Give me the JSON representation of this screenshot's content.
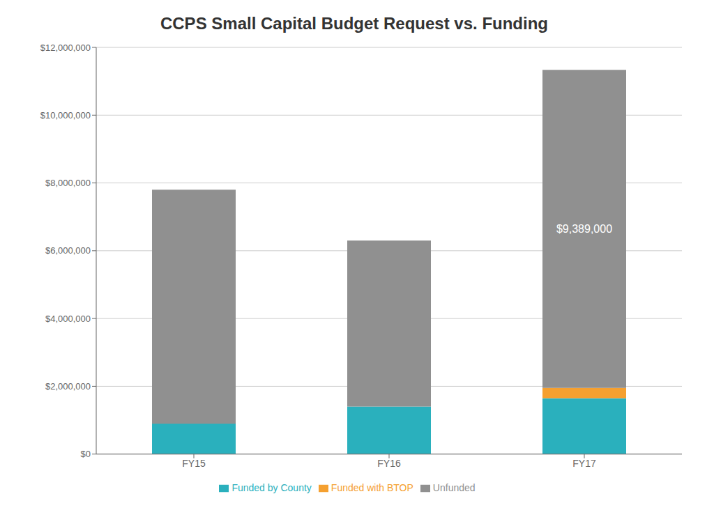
{
  "chart_data": {
    "type": "bar",
    "stacked": true,
    "title": "CCPS Small Capital Budget Request vs. Funding",
    "categories": [
      "FY15",
      "FY16",
      "FY17"
    ],
    "series": [
      {
        "name": "Funded by County",
        "color": "#2ab0bd",
        "values": [
          900000,
          1400000,
          1650000
        ]
      },
      {
        "name": "Funded with BTOP",
        "color": "#f5a030",
        "values": [
          0,
          0,
          300000
        ]
      },
      {
        "name": "Unfunded",
        "color": "#909090",
        "values": [
          6900000,
          4900000,
          9389000
        ]
      }
    ],
    "annotations": [
      {
        "text": "$9,389,000",
        "category": "FY17",
        "series": "Unfunded"
      }
    ],
    "ylim": [
      0,
      12000000
    ],
    "yticks": [
      {
        "value": 0,
        "label": "$0"
      },
      {
        "value": 2000000,
        "label": "$2,000,000"
      },
      {
        "value": 4000000,
        "label": "$4,000,000"
      },
      {
        "value": 6000000,
        "label": "$6,000,000"
      },
      {
        "value": 8000000,
        "label": "$8,000,000"
      },
      {
        "value": 10000000,
        "label": "$10,000,000"
      },
      {
        "value": 12000000,
        "label": "$12,000,000"
      }
    ],
    "grid": true,
    "legend": "bottom"
  }
}
